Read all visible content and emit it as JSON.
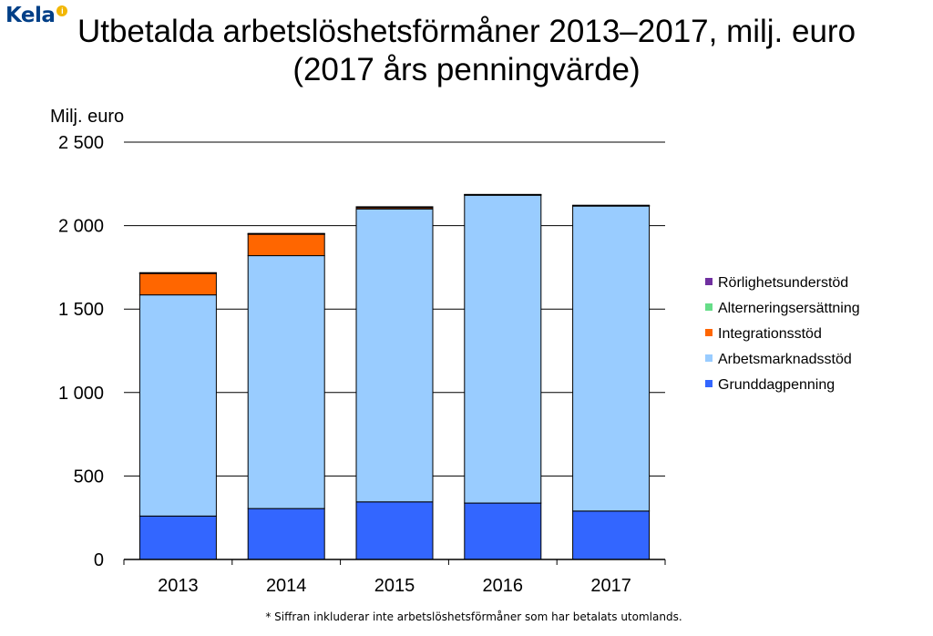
{
  "logo": {
    "text": "Kela",
    "badge_icon": "info-badge-icon",
    "color": "#003f87",
    "badge_color": "#f2b705"
  },
  "title_line1": "Utbetalda arbetslöshetsförmåner  2013–2017, milj. euro",
  "title_line2": "(2017 års penningvärde)",
  "footnote": "* Siffran inkluderar inte arbetslöshetsförmåner som har betalats utomlands.",
  "chart_data": {
    "type": "bar",
    "stacked": true,
    "ylabel": "Milj. euro",
    "ylim": [
      0,
      2500
    ],
    "yticks": [
      0,
      500,
      1000,
      1500,
      2000,
      2500
    ],
    "ytick_labels": [
      "0",
      "500",
      "1 000",
      "1 500",
      "2 000",
      "2 500"
    ],
    "grid": true,
    "legend_position": "right",
    "categories": [
      "2013",
      "2014",
      "2015",
      "2016",
      "2017"
    ],
    "series": [
      {
        "name": "Grunddagpenning",
        "color": "#3366ff",
        "values": [
          260,
          305,
          345,
          338,
          290
        ]
      },
      {
        "name": "Arbetsmarknadsstöd",
        "color": "#99ccff",
        "values": [
          1325,
          1515,
          1755,
          1847,
          1830
        ]
      },
      {
        "name": "Integrationsstöd",
        "color": "#ff6600",
        "values": [
          130,
          130,
          10,
          0,
          0
        ]
      },
      {
        "name": "Alterneringsersättning",
        "color": "#66dd88",
        "values": [
          2,
          2,
          2,
          1,
          1
        ]
      },
      {
        "name": "Rörlighetsunderstöd",
        "color": "#7030a0",
        "values": [
          1,
          1,
          1,
          1,
          1
        ]
      }
    ]
  }
}
